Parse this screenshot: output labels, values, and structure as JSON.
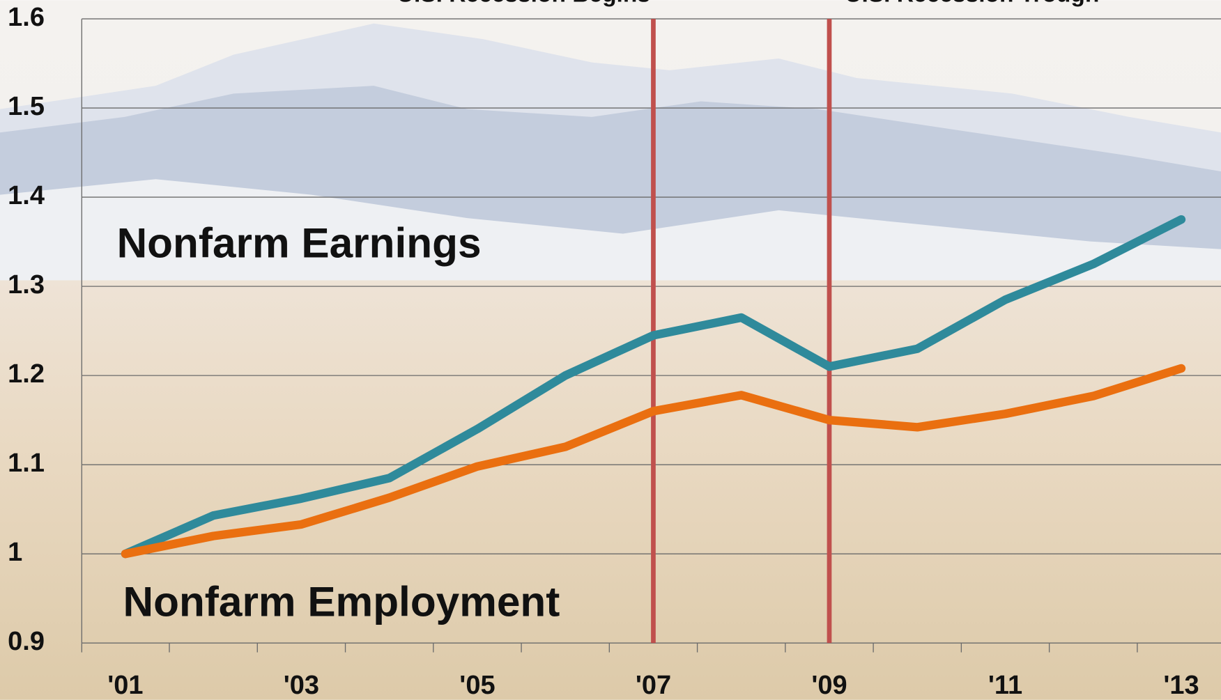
{
  "chart_data": {
    "type": "line",
    "x": [
      2001,
      2002,
      2003,
      2004,
      2005,
      2006,
      2007,
      2008,
      2009,
      2010,
      2011,
      2012,
      2013
    ],
    "xlim": [
      2000.5,
      2013.5
    ],
    "xticks": [
      {
        "value": 2001,
        "label": "'01"
      },
      {
        "value": 2003,
        "label": "'03"
      },
      {
        "value": 2005,
        "label": "'05"
      },
      {
        "value": 2007,
        "label": "'07"
      },
      {
        "value": 2009,
        "label": "'09"
      },
      {
        "value": 2011,
        "label": "'11"
      },
      {
        "value": 2013,
        "label": "'13"
      }
    ],
    "ylim": [
      0.9,
      1.6
    ],
    "yticks": [
      0.9,
      1,
      1.1,
      1.2,
      1.3,
      1.4,
      1.5,
      1.6
    ],
    "grid": true,
    "series": [
      {
        "name": "Nonfarm Earnings",
        "color": "#2f8a9b",
        "values": [
          1.0,
          1.043,
          1.062,
          1.085,
          1.14,
          1.2,
          1.245,
          1.265,
          1.21,
          1.23,
          1.285,
          1.325,
          1.375
        ]
      },
      {
        "name": "Nonfarm Employment",
        "color": "#ea6f10",
        "values": [
          1.0,
          1.02,
          1.033,
          1.063,
          1.098,
          1.12,
          1.16,
          1.178,
          1.15,
          1.142,
          1.157,
          1.177,
          1.208
        ]
      }
    ],
    "annotations": [
      {
        "label": "U.S. Recession Begins",
        "x": 2007,
        "color": "#c0504d"
      },
      {
        "label": "U.S. Recession Trough",
        "x": 2009,
        "color": "#c0504d"
      }
    ]
  }
}
